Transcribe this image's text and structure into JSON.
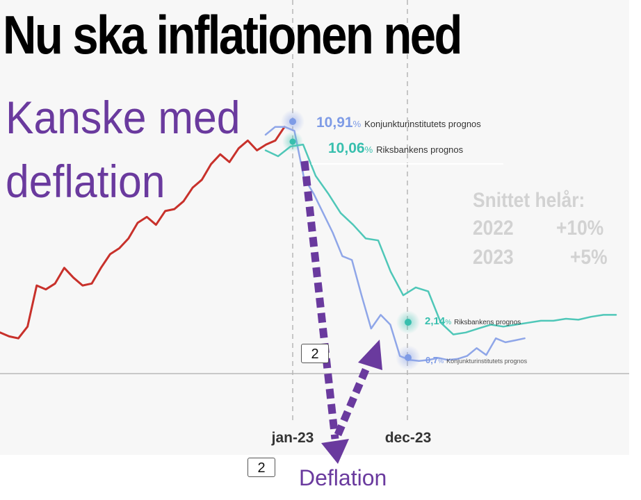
{
  "headline": "Nu ska inflationen ned",
  "subheadline_1": "Kanske med",
  "subheadline_2": "deflation",
  "average_box": {
    "title": "Snittet helår:",
    "rows": [
      {
        "year": "2022",
        "value": "+10%"
      },
      {
        "year": "2023",
        "value": "+5%"
      }
    ]
  },
  "callouts": {
    "ki_peak_value": "10,91",
    "ki_peak_label": "Konjunkturinstitutets prognos",
    "rb_peak_value": "10,06",
    "rb_peak_label": "Riksbankens prognos",
    "rb_dec_value": "2,14",
    "rb_dec_label": "Riksbankens prognos",
    "ki_dec_value": "0,7",
    "ki_dec_label": "Konjunkturinstitutets prognos",
    "percent_sign": "%"
  },
  "markers": {
    "box_1": "2",
    "box_2": "2"
  },
  "arrow_label": "Deflation",
  "colors": {
    "actual": "#c8312b",
    "ki": "#8fa6e8",
    "rb": "#4fc7b8",
    "arrow": "#6a3a9e",
    "ki_text": "#7e9be6",
    "rb_text": "#38bfae"
  },
  "chart_data": {
    "type": "line",
    "x_ticks": [
      "jan-23",
      "dec-23"
    ],
    "zero_line": 0,
    "series": [
      {
        "key": "actual",
        "values": [
          2.1,
          1.9,
          1.8,
          2.4,
          4.5,
          4.3,
          4.6,
          5.4,
          4.9,
          4.5,
          4.6,
          5.4,
          6.1,
          6.4,
          6.9,
          7.7,
          8.0,
          7.6,
          8.3,
          8.4,
          8.8,
          9.5,
          9.9,
          10.7,
          11.2,
          10.8,
          11.5,
          11.9,
          11.4,
          11.7,
          11.9,
          12.6
        ]
      },
      {
        "key": "ki",
        "values": [
          12.2,
          12.6,
          12.6,
          12.4,
          10.0,
          9.2,
          8.2,
          7.2,
          6.0,
          5.8,
          4.0,
          2.3,
          3.0,
          2.5,
          0.9,
          0.7,
          0.65,
          0.7,
          0.8,
          0.7,
          0.75,
          0.9,
          1.3,
          0.95,
          1.8,
          1.6,
          1.7,
          1.8
        ]
      },
      {
        "key": "rb",
        "values": [
          11.4,
          11.1,
          11.6,
          11.7,
          10.1,
          9.2,
          8.2,
          7.6,
          6.9,
          6.8,
          5.2,
          4.0,
          4.4,
          4.2,
          2.6,
          2.0,
          2.1,
          2.3,
          2.5,
          2.4,
          2.5,
          2.6,
          2.7,
          2.7,
          2.8,
          2.75,
          2.9,
          3.0,
          3.0
        ]
      }
    ]
  }
}
